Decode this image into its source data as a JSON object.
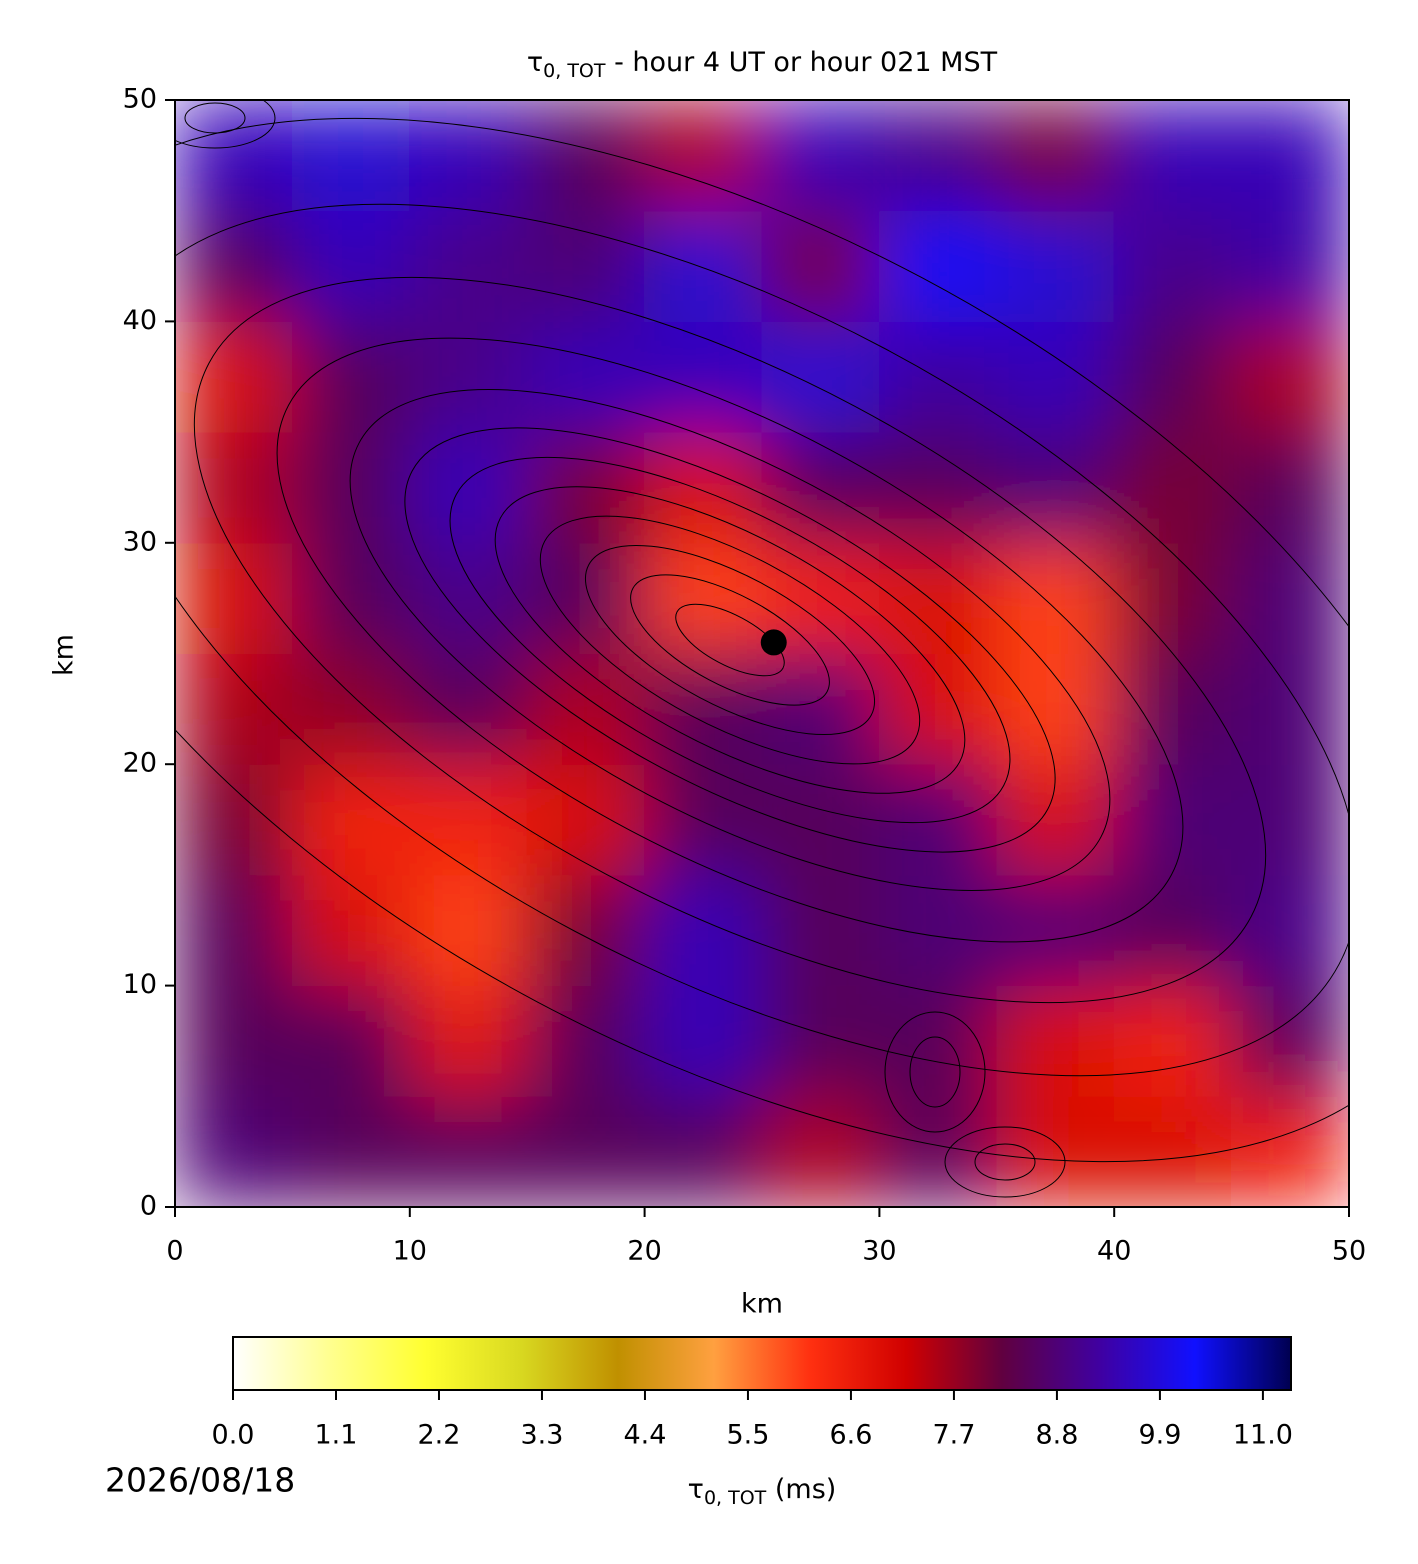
{
  "chart_data": {
    "type": "heatmap",
    "title_symbol": "τ",
    "title_subscript": "0, TOT",
    "title_rest": " - hour 4 UT or hour 021 MST",
    "xlabel": "km",
    "ylabel": "km",
    "xlim": [
      0,
      50
    ],
    "ylim": [
      0,
      50
    ],
    "xticks": [
      0,
      10,
      20,
      30,
      40,
      50
    ],
    "yticks": [
      0,
      10,
      20,
      30,
      40,
      50
    ],
    "xbins": [
      0,
      5,
      10,
      15,
      20,
      25,
      30,
      35,
      40,
      45,
      50
    ],
    "ybins": [
      0,
      5,
      10,
      15,
      20,
      25,
      30,
      35,
      40,
      45,
      50
    ],
    "z": [
      [
        8.8,
        8.5,
        8.5,
        8.5,
        8.5,
        7.5,
        8.5,
        7.0,
        7.0,
        6.5
      ],
      [
        8.5,
        8.5,
        6.8,
        8.5,
        9.5,
        8.5,
        8.5,
        7.0,
        6.5,
        8.5
      ],
      [
        8.5,
        7.0,
        6.0,
        8.0,
        9.5,
        8.5,
        8.8,
        8.8,
        8.5,
        9.0
      ],
      [
        8.0,
        6.5,
        6.5,
        7.0,
        8.5,
        8.5,
        8.8,
        7.0,
        8.8,
        8.8
      ],
      [
        7.5,
        7.8,
        8.5,
        7.5,
        8.5,
        8.8,
        7.0,
        6.0,
        8.5,
        8.8
      ],
      [
        7.0,
        8.5,
        9.0,
        8.5,
        6.0,
        6.5,
        7.0,
        6.0,
        8.0,
        8.8
      ],
      [
        7.5,
        8.5,
        9.5,
        8.0,
        7.0,
        8.5,
        8.5,
        8.8,
        8.0,
        8.5
      ],
      [
        7.0,
        8.5,
        9.0,
        9.5,
        9.5,
        9.8,
        9.2,
        9.5,
        8.5,
        7.5
      ],
      [
        8.5,
        9.5,
        9.0,
        8.8,
        9.8,
        8.0,
        10.3,
        9.8,
        9.0,
        9.3
      ],
      [
        9.5,
        9.8,
        9.5,
        8.5,
        7.5,
        9.5,
        9.0,
        8.0,
        9.5,
        9.5
      ]
    ],
    "marker": {
      "x": 25.5,
      "y": 25.5,
      "color": "#000000"
    },
    "colormap": [
      "#ffffff",
      "#ffff90",
      "#ffff30",
      "#d8d820",
      "#c09000",
      "#ffa040",
      "#ff3010",
      "#d00000",
      "#600040",
      "#4000a0",
      "#1010ff",
      "#000050"
    ],
    "clim": [
      0,
      11.3
    ],
    "cticks": [
      {
        "value": 0,
        "label": "0.0"
      },
      1.1,
      2.2,
      3.3,
      4.4,
      5.5,
      6.6,
      7.7,
      8.8,
      9.9,
      {
        "value": 11,
        "label": "11.0"
      }
    ],
    "clabel_symbol": "τ",
    "clabel_subscript": "0, TOT",
    "clabel_rest": " (ms)",
    "date": "2026/08/18"
  }
}
